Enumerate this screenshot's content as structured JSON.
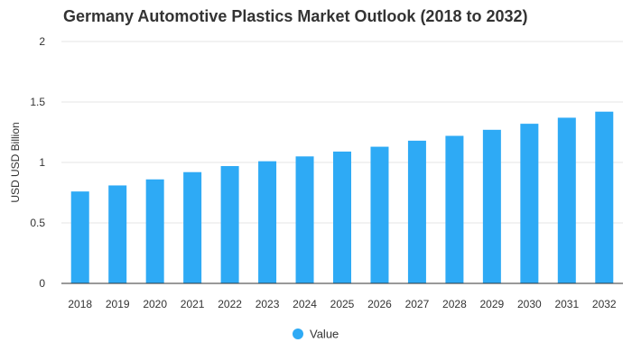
{
  "chart_data": {
    "type": "bar",
    "title": "Germany Automotive Plastics Market Outlook (2018 to 2032)",
    "xlabel": "",
    "ylabel": "USD USD Billion",
    "categories": [
      "2018",
      "2019",
      "2020",
      "2021",
      "2022",
      "2023",
      "2024",
      "2025",
      "2026",
      "2027",
      "2028",
      "2029",
      "2030",
      "2031",
      "2032"
    ],
    "series": [
      {
        "name": "Value",
        "color": "#2eaaf5",
        "values": [
          0.76,
          0.81,
          0.86,
          0.92,
          0.97,
          1.01,
          1.05,
          1.09,
          1.13,
          1.18,
          1.22,
          1.27,
          1.32,
          1.37,
          1.42
        ]
      }
    ],
    "ylim": [
      0,
      2
    ],
    "yticks": [
      "0",
      "0.5",
      "1",
      "1.5",
      "2"
    ],
    "grid": true,
    "legend_position": "bottom-center"
  }
}
